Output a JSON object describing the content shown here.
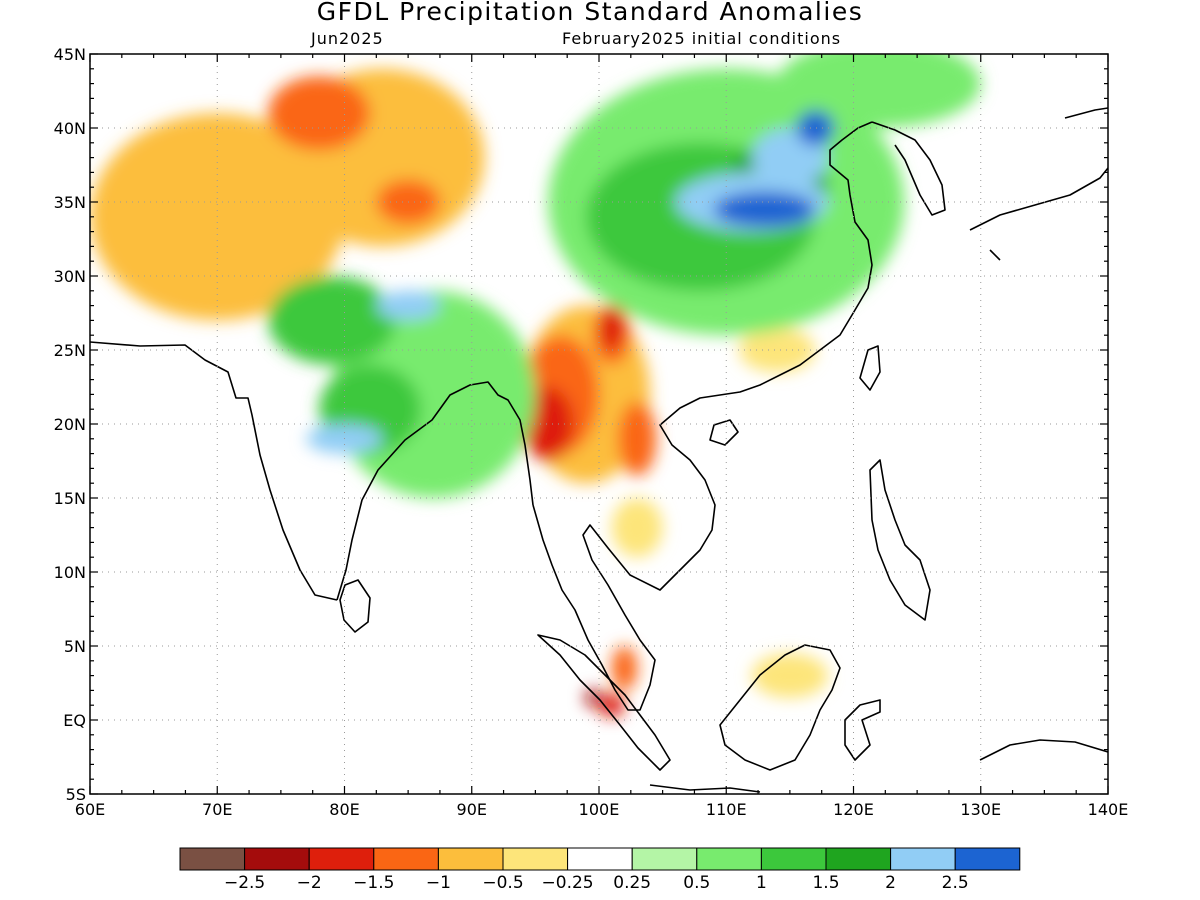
{
  "title": "GFDL Precipitation Standard Anomalies",
  "subtitle_left": "Jun2025",
  "subtitle_right": "February2025 initial conditions",
  "map": {
    "lon_range": [
      60,
      140
    ],
    "lat_range": [
      -5,
      45
    ],
    "lon_ticks": [
      {
        "value": 60,
        "label": "60E"
      },
      {
        "value": 70,
        "label": "70E"
      },
      {
        "value": 80,
        "label": "80E"
      },
      {
        "value": 90,
        "label": "90E"
      },
      {
        "value": 100,
        "label": "100E"
      },
      {
        "value": 110,
        "label": "110E"
      },
      {
        "value": 120,
        "label": "120E"
      },
      {
        "value": 130,
        "label": "130E"
      },
      {
        "value": 140,
        "label": "140E"
      }
    ],
    "lat_ticks": [
      {
        "value": 45,
        "label": "45N"
      },
      {
        "value": 40,
        "label": "40N"
      },
      {
        "value": 35,
        "label": "35N"
      },
      {
        "value": 30,
        "label": "30N"
      },
      {
        "value": 25,
        "label": "25N"
      },
      {
        "value": 20,
        "label": "20N"
      },
      {
        "value": 15,
        "label": "15N"
      },
      {
        "value": 10,
        "label": "10N"
      },
      {
        "value": 5,
        "label": "5N"
      },
      {
        "value": 0,
        "label": "EQ"
      },
      {
        "value": -5,
        "label": "5S"
      }
    ],
    "gridlines": true
  },
  "legend": {
    "colors": [
      "#7a5043",
      "#a40c0c",
      "#de1f0c",
      "#fa6614",
      "#fcbe3c",
      "#fde57a",
      "#ffffff",
      "#b4f5a6",
      "#78eb6e",
      "#3cc83c",
      "#1fa51f",
      "#91cdf5",
      "#1c64d2"
    ],
    "labels": [
      "−2.5",
      "−2",
      "−1.5",
      "−1",
      "−0.5",
      "−0.25",
      "0.25",
      "0.5",
      "1",
      "1.5",
      "2",
      "2.5"
    ]
  },
  "anomaly_fields": [
    {
      "category": 4,
      "lon": 70,
      "lat": 34,
      "rlon": 10,
      "rlat": 7
    },
    {
      "category": 4,
      "lon": 83,
      "lat": 38,
      "rlon": 8,
      "rlat": 6
    },
    {
      "category": 4,
      "lon": 99,
      "lat": 22,
      "rlon": 5,
      "rlat": 6
    },
    {
      "category": 3,
      "lon": 78,
      "lat": 41,
      "rlon": 4,
      "rlat": 2.5
    },
    {
      "category": 3,
      "lon": 85,
      "lat": 35,
      "rlon": 2.5,
      "rlat": 1.5
    },
    {
      "category": 3,
      "lon": 97,
      "lat": 22,
      "rlon": 3,
      "rlat": 4
    },
    {
      "category": 3,
      "lon": 101,
      "lat": 26,
      "rlon": 1.5,
      "rlat": 2
    },
    {
      "category": 3,
      "lon": 103,
      "lat": 19,
      "rlon": 1.5,
      "rlat": 2.5
    },
    {
      "category": 3,
      "lon": 102,
      "lat": 3.5,
      "rlon": 1,
      "rlat": 1.5
    },
    {
      "category": 2,
      "lon": 96,
      "lat": 20,
      "rlon": 2,
      "rlat": 2.5
    },
    {
      "category": 2,
      "lon": 101,
      "lat": 26.5,
      "rlon": 1,
      "rlat": 1.5
    },
    {
      "category": 2,
      "lon": 101,
      "lat": 1,
      "rlon": 1,
      "rlat": 0.8
    },
    {
      "category": 1,
      "lon": 99.5,
      "lat": 1.5,
      "rlon": 0.6,
      "rlat": 0.6
    },
    {
      "category": 5,
      "lon": 103,
      "lat": 13,
      "rlon": 2,
      "rlat": 2
    },
    {
      "category": 5,
      "lon": 115,
      "lat": 3,
      "rlon": 3,
      "rlat": 1.5
    },
    {
      "category": 5,
      "lon": 114,
      "lat": 25,
      "rlon": 3,
      "rlat": 1.5
    },
    {
      "category": 8,
      "lon": 87,
      "lat": 22,
      "rlon": 8,
      "rlat": 7
    },
    {
      "category": 8,
      "lon": 110,
      "lat": 35,
      "rlon": 14,
      "rlat": 9
    },
    {
      "category": 8,
      "lon": 122,
      "lat": 43,
      "rlon": 8,
      "rlat": 3
    },
    {
      "category": 9,
      "lon": 79,
      "lat": 27,
      "rlon": 5,
      "rlat": 3
    },
    {
      "category": 9,
      "lon": 82,
      "lat": 21,
      "rlon": 4,
      "rlat": 3
    },
    {
      "category": 9,
      "lon": 108,
      "lat": 34,
      "rlon": 9,
      "rlat": 5
    },
    {
      "category": 10,
      "lon": 114,
      "lat": 36,
      "rlon": 4,
      "rlat": 3
    },
    {
      "category": 11,
      "lon": 80,
      "lat": 19,
      "rlon": 3,
      "rlat": 1
    },
    {
      "category": 11,
      "lon": 85,
      "lat": 28,
      "rlon": 2.5,
      "rlat": 1
    },
    {
      "category": 11,
      "lon": 115,
      "lat": 38,
      "rlon": 3,
      "rlat": 2
    },
    {
      "category": 11,
      "lon": 112,
      "lat": 35,
      "rlon": 6,
      "rlat": 2
    },
    {
      "category": 12,
      "lon": 117,
      "lat": 40,
      "rlon": 1.5,
      "rlat": 1.2
    },
    {
      "category": 12,
      "lon": 113,
      "lat": 34.5,
      "rlon": 4,
      "rlat": 1.2
    }
  ]
}
